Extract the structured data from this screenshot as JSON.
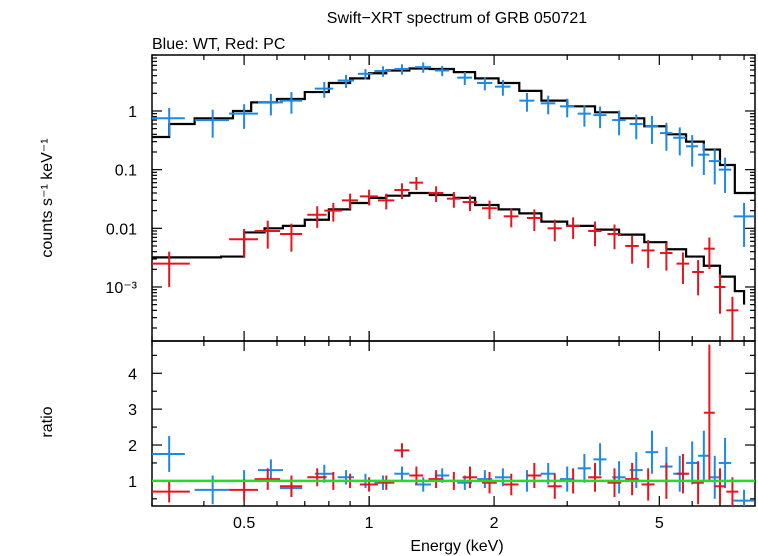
{
  "title": "Swift−XRT spectrum of GRB 050721",
  "subtitle": "Blue: WT, Red: PC",
  "colors": {
    "wt": "#1e88e5",
    "pc": "#e8141b",
    "model": "#000000",
    "unity": "#22dd22"
  },
  "chart_data": [
    {
      "type": "scatter",
      "panel": "spectrum",
      "xlabel": "Energy (keV)",
      "ylabel": "counts s⁻¹ keV⁻¹",
      "xscale": "log",
      "yscale": "log",
      "xlim": [
        0.3,
        8.5
      ],
      "ylim": [
        0.00012,
        9
      ],
      "y_ticks": [
        {
          "value": 1,
          "label": "1"
        },
        {
          "value": 0.1,
          "label": "0.1"
        },
        {
          "value": 0.01,
          "label": "0.01"
        },
        {
          "value": 0.001,
          "label": "10⁻³"
        }
      ],
      "series": [
        {
          "name": "WT",
          "color": "#1e88e5",
          "x": [
            0.33,
            0.42,
            0.5,
            0.58,
            0.65,
            0.78,
            0.88,
            0.98,
            1.08,
            1.2,
            1.35,
            1.5,
            1.7,
            1.9,
            2.1,
            2.4,
            2.7,
            3.0,
            3.3,
            3.6,
            4.0,
            4.4,
            4.8,
            5.2,
            5.6,
            6.0,
            6.4,
            6.8,
            7.2,
            8.0
          ],
          "y": [
            0.75,
            0.7,
            0.9,
            1.4,
            1.5,
            2.4,
            3.3,
            4.3,
            4.8,
            5.2,
            5.6,
            4.9,
            3.7,
            3.0,
            2.6,
            1.5,
            1.35,
            1.2,
            0.9,
            0.85,
            0.7,
            0.6,
            0.55,
            0.42,
            0.35,
            0.25,
            0.18,
            0.14,
            0.1,
            0.016
          ],
          "xerr": [
            0.03,
            0.04,
            0.04,
            0.04,
            0.04,
            0.04,
            0.04,
            0.04,
            0.05,
            0.05,
            0.06,
            0.06,
            0.07,
            0.08,
            0.09,
            0.1,
            0.11,
            0.12,
            0.12,
            0.13,
            0.15,
            0.16,
            0.17,
            0.18,
            0.2,
            0.2,
            0.2,
            0.22,
            0.25,
            0.45
          ],
          "yerr_frac": [
            0.5,
            0.5,
            0.45,
            0.4,
            0.4,
            0.3,
            0.25,
            0.2,
            0.2,
            0.2,
            0.2,
            0.2,
            0.25,
            0.25,
            0.3,
            0.35,
            0.35,
            0.35,
            0.4,
            0.4,
            0.45,
            0.45,
            0.5,
            0.5,
            0.5,
            0.55,
            0.55,
            0.6,
            0.6,
            0.7
          ]
        },
        {
          "name": "PC",
          "color": "#e8141b",
          "x": [
            0.33,
            0.5,
            0.57,
            0.65,
            0.75,
            0.82,
            0.9,
            1.0,
            1.1,
            1.2,
            1.3,
            1.45,
            1.6,
            1.75,
            1.95,
            2.2,
            2.5,
            2.8,
            3.1,
            3.5,
            3.9,
            4.3,
            4.7,
            5.2,
            5.7,
            6.2,
            6.6,
            7.0,
            7.5
          ],
          "y": [
            0.0025,
            0.0065,
            0.009,
            0.008,
            0.017,
            0.02,
            0.03,
            0.035,
            0.03,
            0.045,
            0.06,
            0.04,
            0.032,
            0.028,
            0.022,
            0.016,
            0.015,
            0.01,
            0.011,
            0.009,
            0.008,
            0.005,
            0.0042,
            0.0038,
            0.0025,
            0.0018,
            0.0045,
            0.001,
            0.0004
          ],
          "xerr": [
            0.04,
            0.04,
            0.04,
            0.04,
            0.04,
            0.04,
            0.04,
            0.05,
            0.05,
            0.05,
            0.05,
            0.06,
            0.06,
            0.07,
            0.08,
            0.09,
            0.1,
            0.11,
            0.12,
            0.13,
            0.15,
            0.16,
            0.17,
            0.18,
            0.2,
            0.2,
            0.2,
            0.22,
            0.25
          ],
          "yerr_frac": [
            0.6,
            0.5,
            0.5,
            0.5,
            0.4,
            0.35,
            0.3,
            0.3,
            0.3,
            0.3,
            0.25,
            0.3,
            0.3,
            0.3,
            0.35,
            0.35,
            0.4,
            0.4,
            0.4,
            0.45,
            0.45,
            0.5,
            0.5,
            0.5,
            0.55,
            0.6,
            0.55,
            0.65,
            0.7
          ]
        },
        {
          "name": "WT model",
          "color": "#000000",
          "type": "step",
          "x": [
            0.3,
            0.33,
            0.38,
            0.42,
            0.47,
            0.52,
            0.6,
            0.7,
            0.8,
            0.9,
            1.0,
            1.1,
            1.25,
            1.4,
            1.6,
            1.8,
            2.05,
            2.3,
            2.6,
            3.0,
            3.5,
            4.0,
            4.6,
            5.2,
            5.8,
            6.4,
            7.0,
            7.6,
            8.5
          ],
          "y": [
            0.36,
            0.6,
            0.75,
            0.75,
            1.0,
            1.4,
            1.6,
            2.1,
            3.0,
            3.6,
            4.4,
            4.9,
            5.3,
            5.2,
            4.6,
            3.6,
            3.0,
            2.2,
            1.5,
            1.2,
            0.95,
            0.75,
            0.55,
            0.4,
            0.3,
            0.22,
            0.12,
            0.04,
            0.04
          ]
        },
        {
          "name": "PC model",
          "color": "#000000",
          "type": "step",
          "x": [
            0.3,
            0.44,
            0.5,
            0.56,
            0.62,
            0.7,
            0.8,
            0.9,
            1.0,
            1.1,
            1.25,
            1.4,
            1.6,
            1.8,
            2.05,
            2.3,
            2.6,
            3.0,
            3.5,
            4.0,
            4.6,
            5.2,
            5.8,
            6.4,
            7.0,
            7.6,
            8.0
          ],
          "y": [
            0.0032,
            0.0033,
            0.0085,
            0.01,
            0.011,
            0.014,
            0.021,
            0.027,
            0.033,
            0.036,
            0.04,
            0.037,
            0.033,
            0.025,
            0.021,
            0.018,
            0.013,
            0.011,
            0.0095,
            0.0078,
            0.0058,
            0.0044,
            0.0033,
            0.0023,
            0.0015,
            0.00085,
            0.0005
          ]
        }
      ]
    },
    {
      "type": "scatter",
      "panel": "ratio",
      "xlabel": "Energy (keV)",
      "ylabel": "ratio",
      "xscale": "log",
      "xlim": [
        0.3,
        8.5
      ],
      "ylim": [
        0.3,
        4.9
      ],
      "x_ticks": [
        {
          "value": 0.5,
          "label": "0.5"
        },
        {
          "value": 1,
          "label": "1"
        },
        {
          "value": 2,
          "label": "2"
        },
        {
          "value": 5,
          "label": "5"
        }
      ],
      "y_ticks": [
        1,
        2,
        3,
        4
      ],
      "unity_line": 1,
      "series": [
        {
          "name": "WT ratio",
          "color": "#1e88e5",
          "x": [
            0.33,
            0.42,
            0.5,
            0.58,
            0.65,
            0.78,
            0.88,
            0.98,
            1.08,
            1.2,
            1.35,
            1.5,
            1.7,
            1.9,
            2.1,
            2.4,
            2.7,
            3.0,
            3.3,
            3.6,
            4.0,
            4.4,
            4.8,
            5.2,
            5.6,
            6.0,
            6.4,
            6.8,
            7.2,
            8.0
          ],
          "y": [
            1.75,
            0.75,
            1.0,
            1.3,
            0.8,
            1.2,
            1.1,
            1.0,
            0.95,
            1.2,
            0.9,
            1.15,
            0.95,
            1.05,
            1.1,
            1.0,
            1.2,
            1.05,
            1.35,
            1.6,
            1.1,
            1.3,
            1.8,
            1.4,
            1.2,
            1.5,
            1.7,
            1.1,
            1.5,
            0.45
          ],
          "xerr": [
            0.03,
            0.04,
            0.04,
            0.04,
            0.04,
            0.04,
            0.04,
            0.04,
            0.05,
            0.05,
            0.06,
            0.06,
            0.07,
            0.08,
            0.09,
            0.1,
            0.11,
            0.12,
            0.12,
            0.13,
            0.15,
            0.16,
            0.17,
            0.18,
            0.2,
            0.2,
            0.2,
            0.22,
            0.25,
            0.45
          ],
          "yerr": [
            0.5,
            0.4,
            0.3,
            0.3,
            0.25,
            0.25,
            0.2,
            0.2,
            0.2,
            0.2,
            0.2,
            0.2,
            0.2,
            0.25,
            0.25,
            0.3,
            0.3,
            0.35,
            0.4,
            0.45,
            0.45,
            0.5,
            0.6,
            0.55,
            0.5,
            0.6,
            0.7,
            0.6,
            0.7,
            0.3
          ]
        },
        {
          "name": "PC ratio",
          "color": "#e8141b",
          "x": [
            0.33,
            0.5,
            0.57,
            0.65,
            0.75,
            0.82,
            0.9,
            1.0,
            1.1,
            1.2,
            1.3,
            1.45,
            1.6,
            1.75,
            1.95,
            2.2,
            2.5,
            2.8,
            3.1,
            3.5,
            3.9,
            4.3,
            4.7,
            5.2,
            5.7,
            6.2,
            6.6,
            7.0,
            7.5
          ],
          "y": [
            0.7,
            0.75,
            1.05,
            0.85,
            1.1,
            1.0,
            1.0,
            0.9,
            0.95,
            1.85,
            1.15,
            1.05,
            1.0,
            1.1,
            0.95,
            0.9,
            1.15,
            0.85,
            1.0,
            1.1,
            0.95,
            1.05,
            0.9,
            1.0,
            1.2,
            0.95,
            2.9,
            0.85,
            0.7
          ],
          "xerr": [
            0.04,
            0.04,
            0.04,
            0.04,
            0.04,
            0.04,
            0.04,
            0.05,
            0.05,
            0.05,
            0.05,
            0.06,
            0.06,
            0.07,
            0.08,
            0.09,
            0.1,
            0.11,
            0.12,
            0.13,
            0.15,
            0.16,
            0.17,
            0.18,
            0.2,
            0.2,
            0.2,
            0.22,
            0.25
          ],
          "yerr": [
            0.3,
            0.3,
            0.3,
            0.3,
            0.25,
            0.25,
            0.2,
            0.2,
            0.2,
            0.2,
            0.25,
            0.25,
            0.25,
            0.3,
            0.3,
            0.3,
            0.35,
            0.35,
            0.35,
            0.4,
            0.4,
            0.45,
            0.45,
            0.5,
            0.55,
            0.6,
            1.9,
            0.5,
            0.4
          ]
        }
      ]
    }
  ]
}
